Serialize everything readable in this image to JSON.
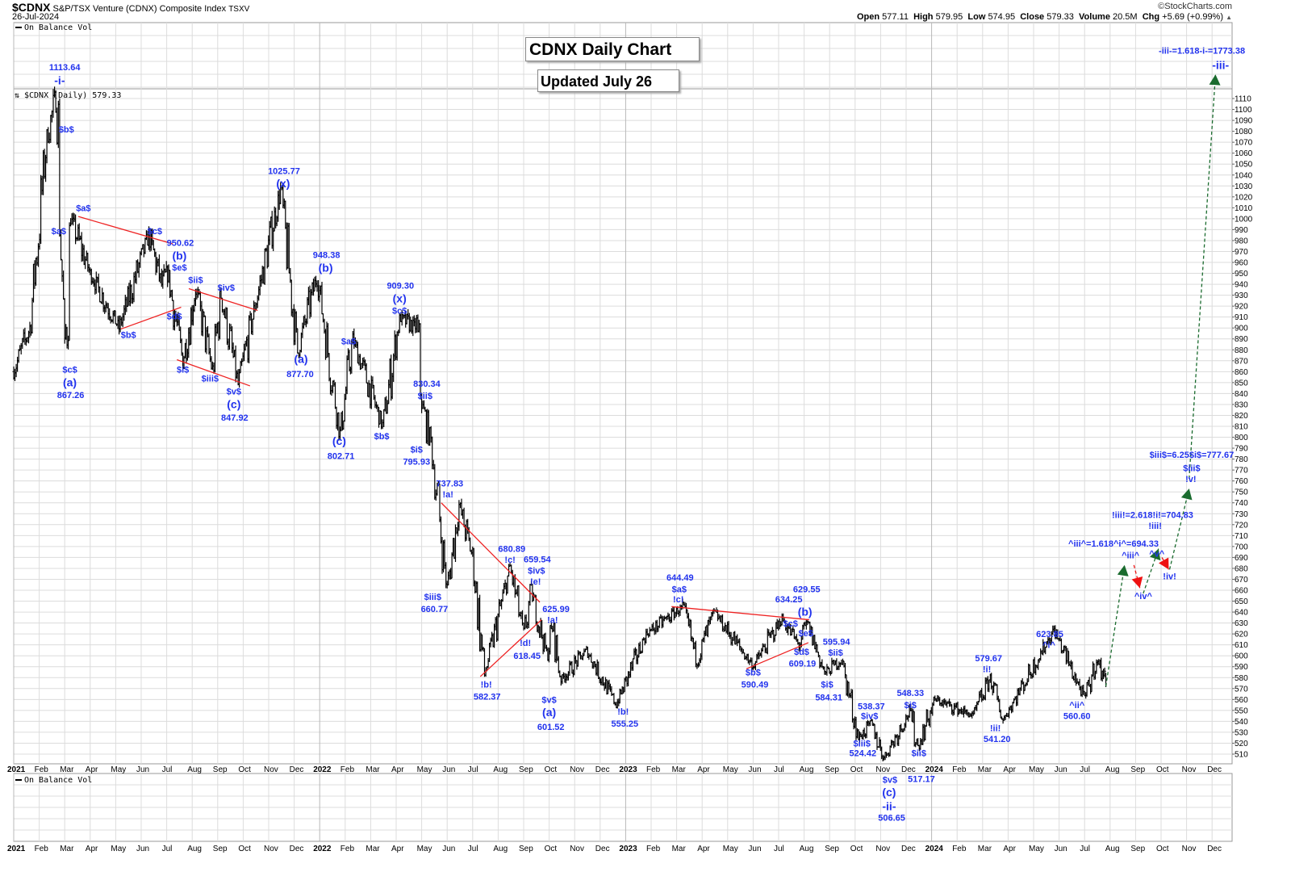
{
  "header": {
    "symbol": "$CDNX",
    "name": "S&P/TSX Venture (CDNX) Composite Index",
    "exchange": "TSXV",
    "date": "26-Jul-2024",
    "copyright": "©StockCharts.com",
    "open_label": "Open",
    "open": "577.11",
    "high_label": "High",
    "high": "579.95",
    "low_label": "Low",
    "low": "574.95",
    "close_label": "Close",
    "close": "579.33",
    "volume_label": "Volume",
    "volume": "20.5M",
    "chg_label": "Chg",
    "chg": "+5.69 (+0.99%)",
    "chg_direction": "up"
  },
  "titles": {
    "main": "CDNX Daily Chart",
    "updated": "Updated July 26"
  },
  "panels": {
    "obv_top": "On Balance Vol",
    "price": "$CDNX (Daily) 579.33",
    "obv_bottom": "On Balance Vol"
  },
  "colors": {
    "labels": "#2233ee",
    "trendlines": "#ee2222",
    "bars": "#000000",
    "projection_up": "#1a6b2e",
    "projection_down": "#ee1111",
    "grid": "#dcdcdc"
  },
  "chart_data": {
    "type": "ohlc-bar",
    "title": "CDNX Daily Chart",
    "ylim": [
      505,
      1115
    ],
    "y_scale": "linear",
    "grid": true,
    "y_ticks": [
      510,
      520,
      530,
      540,
      550,
      560,
      570,
      580,
      590,
      600,
      610,
      620,
      630,
      640,
      650,
      660,
      670,
      680,
      690,
      700,
      710,
      720,
      730,
      740,
      750,
      760,
      770,
      780,
      790,
      800,
      810,
      820,
      830,
      840,
      850,
      860,
      870,
      880,
      890,
      900,
      910,
      920,
      930,
      940,
      950,
      960,
      970,
      980,
      990,
      1000,
      1010,
      1020,
      1030,
      1040,
      1050,
      1060,
      1070,
      1080,
      1090,
      1100,
      1110
    ],
    "x_ticks": [
      "2021",
      "Feb",
      "Mar",
      "Apr",
      "May",
      "Jun",
      "Jul",
      "Aug",
      "Sep",
      "Oct",
      "Nov",
      "Dec",
      "2022",
      "Feb",
      "Mar",
      "Apr",
      "May",
      "Jun",
      "Jul",
      "Aug",
      "Sep",
      "Oct",
      "Nov",
      "Dec",
      "2023",
      "Feb",
      "Mar",
      "Apr",
      "May",
      "Jun",
      "Jul",
      "Aug",
      "Sep",
      "Oct",
      "Nov",
      "Dec",
      "2024",
      "Feb",
      "Mar",
      "Apr",
      "May",
      "Jun",
      "Jul",
      "Aug",
      "Sep",
      "Oct",
      "Nov",
      "Dec"
    ],
    "price_path": [
      [
        "2021-01-01",
        860
      ],
      [
        "2021-01-20",
        900
      ],
      [
        "2021-02-10",
        1075
      ],
      [
        "2021-02-22",
        1113.64
      ],
      [
        "2021-03-01",
        867.26
      ],
      [
        "2021-03-08",
        1000
      ],
      [
        "2021-04-01",
        950
      ],
      [
        "2021-05-05",
        900
      ],
      [
        "2021-06-10",
        985
      ],
      [
        "2021-06-25",
        940
      ],
      [
        "2021-07-02",
        950.62
      ],
      [
        "2021-07-20",
        870
      ],
      [
        "2021-08-05",
        935
      ],
      [
        "2021-08-25",
        860
      ],
      [
        "2021-09-05",
        930
      ],
      [
        "2021-09-25",
        847.92
      ],
      [
        "2021-10-15",
        920
      ],
      [
        "2021-11-15",
        1025.77
      ],
      [
        "2021-12-05",
        877.7
      ],
      [
        "2021-12-28",
        948.38
      ],
      [
        "2022-01-25",
        802.71
      ],
      [
        "2022-02-10",
        890
      ],
      [
        "2022-03-15",
        810
      ],
      [
        "2022-04-05",
        909.3
      ],
      [
        "2022-04-25",
        900
      ],
      [
        "2022-05-01",
        830.34
      ],
      [
        "2022-05-12",
        795.93
      ],
      [
        "2022-06-01",
        660.77
      ],
      [
        "2022-06-15",
        737.83
      ],
      [
        "2022-07-01",
        690
      ],
      [
        "2022-07-15",
        582.37
      ],
      [
        "2022-08-15",
        680.89
      ],
      [
        "2022-09-01",
        618.45
      ],
      [
        "2022-09-10",
        659.54
      ],
      [
        "2022-09-28",
        601.52
      ],
      [
        "2022-10-05",
        625.99
      ],
      [
        "2022-10-15",
        578
      ],
      [
        "2022-11-15",
        605
      ],
      [
        "2022-12-20",
        555.25
      ],
      [
        "2023-01-25",
        620
      ],
      [
        "2023-03-08",
        644.49
      ],
      [
        "2023-03-25",
        595
      ],
      [
        "2023-04-15",
        640
      ],
      [
        "2023-06-01",
        590.49
      ],
      [
        "2023-07-05",
        634.25
      ],
      [
        "2023-07-25",
        609.19
      ],
      [
        "2023-08-05",
        629.55
      ],
      [
        "2023-08-25",
        584.31
      ],
      [
        "2023-09-15",
        595.94
      ],
      [
        "2023-10-05",
        524.42
      ],
      [
        "2023-10-20",
        538.37
      ],
      [
        "2023-11-05",
        506.65
      ],
      [
        "2023-12-05",
        548.33
      ],
      [
        "2023-12-15",
        517.17
      ],
      [
        "2024-01-05",
        560
      ],
      [
        "2024-02-20",
        545
      ],
      [
        "2024-03-10",
        579.67
      ],
      [
        "2024-03-25",
        541.2
      ],
      [
        "2024-05-25",
        623.85
      ],
      [
        "2024-07-01",
        560.6
      ],
      [
        "2024-07-15",
        595
      ],
      [
        "2024-07-26",
        579.33
      ]
    ],
    "trendlines": [
      [
        [
          "2021-03-17",
          1002
        ],
        [
          "2021-07-08",
          977
        ]
      ],
      [
        [
          "2021-05-07",
          899
        ],
        [
          "2021-07-18",
          919
        ]
      ],
      [
        [
          "2021-07-27",
          936
        ],
        [
          "2021-10-18",
          916
        ]
      ],
      [
        [
          "2021-07-13",
          871
        ],
        [
          "2021-10-09",
          847
        ]
      ],
      [
        [
          "2022-05-24",
          740
        ],
        [
          "2022-09-20",
          649
        ]
      ],
      [
        [
          "2022-07-10",
          581
        ],
        [
          "2022-09-22",
          633
        ]
      ],
      [
        [
          "2023-02-25",
          645
        ],
        [
          "2023-08-07",
          633
        ]
      ],
      [
        [
          "2023-05-23",
          588
        ],
        [
          "2023-08-06",
          612
        ]
      ]
    ],
    "projection": [
      {
        "from": [
          "2024-07-26",
          572
        ],
        "to": [
          "2024-08-18",
          683
        ],
        "direction": "up"
      },
      {
        "from": [
          "2024-08-29",
          683
        ],
        "to": [
          "2024-09-06",
          662
        ],
        "direction": "down"
      },
      {
        "from": [
          "2024-09-10",
          657
        ],
        "to": [
          "2024-09-28",
          698
        ],
        "direction": "up"
      },
      {
        "from": [
          "2024-10-02",
          690
        ],
        "to": [
          "2024-10-10",
          679
        ],
        "direction": "down"
      },
      {
        "from": [
          "2024-10-11",
          679
        ],
        "to": [
          "2024-11-04",
          753
        ],
        "direction": "up"
      },
      {
        "from": [
          "2024-11-04",
          762
        ],
        "to": [
          "2024-12-05",
          1132
        ],
        "direction": "up"
      }
    ],
    "annotations": [
      {
        "text": "1113.64",
        "date": "2021-03-01",
        "price": 1139
      },
      {
        "text": "-i-",
        "date": "2021-02-25",
        "price": 1126,
        "big": true
      },
      {
        "text": "$b$",
        "date": "2021-03-03",
        "price": 1082
      },
      {
        "text": "$a$",
        "date": "2021-03-23",
        "price": 1010
      },
      {
        "text": "$a$",
        "date": "2021-02-24",
        "price": 989
      },
      {
        "text": "$c$",
        "date": "2021-03-07",
        "price": 862
      },
      {
        "text": "(a)",
        "date": "2021-03-07",
        "price": 851,
        "big": true
      },
      {
        "text": "867.26",
        "date": "2021-03-08",
        "price": 839
      },
      {
        "text": "$b$",
        "date": "2021-05-16",
        "price": 894
      },
      {
        "text": "$c$",
        "date": "2021-06-17",
        "price": 989
      },
      {
        "text": "950.62",
        "date": "2021-07-17",
        "price": 978
      },
      {
        "text": "(b)",
        "date": "2021-07-16",
        "price": 967,
        "big": true
      },
      {
        "text": "$e$",
        "date": "2021-07-16",
        "price": 957
      },
      {
        "text": "$d$",
        "date": "2021-07-10",
        "price": 911
      },
      {
        "text": "$ii$",
        "date": "2021-08-05",
        "price": 944
      },
      {
        "text": "$iv$",
        "date": "2021-09-11",
        "price": 937
      },
      {
        "text": "$i$",
        "date": "2021-07-20",
        "price": 862
      },
      {
        "text": "$iii$",
        "date": "2021-08-22",
        "price": 854
      },
      {
        "text": "$v$",
        "date": "2021-09-20",
        "price": 842
      },
      {
        "text": "(c)",
        "date": "2021-09-20",
        "price": 831,
        "big": true
      },
      {
        "text": "847.92",
        "date": "2021-09-21",
        "price": 818
      },
      {
        "text": "1025.77",
        "date": "2021-11-19",
        "price": 1044
      },
      {
        "text": "(x)",
        "date": "2021-11-18",
        "price": 1033,
        "big": true
      },
      {
        "text": "(a)",
        "date": "2021-12-09",
        "price": 871,
        "big": true
      },
      {
        "text": "877.70",
        "date": "2021-12-08",
        "price": 858
      },
      {
        "text": "948.38",
        "date": "2022-01-09",
        "price": 967
      },
      {
        "text": "(b)",
        "date": "2022-01-08",
        "price": 956,
        "big": true
      },
      {
        "text": "$a$",
        "date": "2022-02-05",
        "price": 888
      },
      {
        "text": "(c)",
        "date": "2022-01-24",
        "price": 796,
        "big": true
      },
      {
        "text": "802.71",
        "date": "2022-01-26",
        "price": 783
      },
      {
        "text": "$b$",
        "date": "2022-03-14",
        "price": 801
      },
      {
        "text": "909.30",
        "date": "2022-04-06",
        "price": 939
      },
      {
        "text": "(x)",
        "date": "2022-04-05",
        "price": 928,
        "big": true
      },
      {
        "text": "$c$",
        "date": "2022-04-05",
        "price": 916
      },
      {
        "text": "830.34",
        "date": "2022-05-07",
        "price": 849
      },
      {
        "text": "$ii$",
        "date": "2022-05-05",
        "price": 838
      },
      {
        "text": "$i$",
        "date": "2022-04-25",
        "price": 789
      },
      {
        "text": "795.93",
        "date": "2022-04-25",
        "price": 778
      },
      {
        "text": "737.83",
        "date": "2022-06-04",
        "price": 758
      },
      {
        "text": "!a!",
        "date": "2022-06-02",
        "price": 748
      },
      {
        "text": "$iii$",
        "date": "2022-05-14",
        "price": 654
      },
      {
        "text": "660.77",
        "date": "2022-05-16",
        "price": 643
      },
      {
        "text": "680.89",
        "date": "2022-08-17",
        "price": 698
      },
      {
        "text": "!c!",
        "date": "2022-08-15",
        "price": 688
      },
      {
        "text": "659.54",
        "date": "2022-09-17",
        "price": 690
      },
      {
        "text": "$iv$",
        "date": "2022-09-16",
        "price": 678
      },
      {
        "text": "!e!",
        "date": "2022-09-15",
        "price": 668
      },
      {
        "text": "625.99",
        "date": "2022-10-09",
        "price": 643
      },
      {
        "text": "!a!",
        "date": "2022-10-05",
        "price": 633
      },
      {
        "text": "!d!",
        "date": "2022-09-03",
        "price": 612
      },
      {
        "text": "618.45",
        "date": "2022-09-05",
        "price": 600
      },
      {
        "text": "!b!",
        "date": "2022-07-17",
        "price": 574
      },
      {
        "text": "582.37",
        "date": "2022-07-18",
        "price": 563
      },
      {
        "text": "$v$",
        "date": "2022-10-01",
        "price": 560
      },
      {
        "text": "(a)",
        "date": "2022-10-01",
        "price": 549,
        "big": true
      },
      {
        "text": "601.52",
        "date": "2022-10-03",
        "price": 535
      },
      {
        "text": "!b!",
        "date": "2022-12-28",
        "price": 549
      },
      {
        "text": "555.25",
        "date": "2022-12-30",
        "price": 538
      },
      {
        "text": "644.49",
        "date": "2023-03-05",
        "price": 672
      },
      {
        "text": "$a$",
        "date": "2023-03-04",
        "price": 661
      },
      {
        "text": "!c!",
        "date": "2023-03-03",
        "price": 652
      },
      {
        "text": "$b$",
        "date": "2023-06-01",
        "price": 585
      },
      {
        "text": "590.49",
        "date": "2023-06-03",
        "price": 574
      },
      {
        "text": "634.25",
        "date": "2023-07-13",
        "price": 652
      },
      {
        "text": "629.55",
        "date": "2023-08-04",
        "price": 661
      },
      {
        "text": "(b)",
        "date": "2023-08-02",
        "price": 650,
        "big": true
      },
      {
        "text": "$c$",
        "date": "2023-07-15",
        "price": 640
      },
      {
        "text": "$e$",
        "date": "2023-08-03",
        "price": 640
      },
      {
        "text": "$d$",
        "date": "2023-07-28",
        "price": 604
      },
      {
        "text": "609.19",
        "date": "2023-07-29",
        "price": 593
      },
      {
        "text": "595.94",
        "date": "2023-09-09",
        "price": 613
      },
      {
        "text": "$ii$",
        "date": "2023-09-08",
        "price": 603
      },
      {
        "text": "$i$",
        "date": "2023-08-28",
        "price": 574
      },
      {
        "text": "584.31",
        "date": "2023-08-30",
        "price": 562
      },
      {
        "text": "538.37",
        "date": "2023-10-20",
        "price": 554
      },
      {
        "text": "$iv$",
        "date": "2023-10-18",
        "price": 545
      },
      {
        "text": "$iii$",
        "date": "2023-10-09",
        "price": 520
      },
      {
        "text": "524.42",
        "date": "2023-10-10",
        "price": 511
      },
      {
        "text": "548.33",
        "date": "2023-12-06",
        "price": 566
      },
      {
        "text": "$i$",
        "date": "2023-12-06",
        "price": 555
      },
      {
        "text": "$ii$",
        "date": "2023-12-16",
        "price": 511
      },
      {
        "text": "517.17",
        "date": "2023-12-19",
        "price": 489
      },
      {
        "text": "$v$",
        "date": "2023-11-12",
        "price": 494
      },
      {
        "text": "(c)",
        "date": "2023-11-11",
        "price": 485,
        "big": true
      },
      {
        "text": "-ii-",
        "date": "2023-11-11",
        "price": 472,
        "big": true
      },
      {
        "text": "506.65",
        "date": "2023-11-14",
        "price": 461
      },
      {
        "text": "579.67",
        "date": "2024-03-08",
        "price": 598
      },
      {
        "text": "!i!",
        "date": "2024-03-06",
        "price": 588
      },
      {
        "text": "!ii!",
        "date": "2024-03-16",
        "price": 534
      },
      {
        "text": "541.20",
        "date": "2024-03-18",
        "price": 524
      },
      {
        "text": "623.85",
        "date": "2024-05-20",
        "price": 620
      },
      {
        "text": "^i^",
        "date": "2024-05-19",
        "price": 610
      },
      {
        "text": "^ii^",
        "date": "2024-06-22",
        "price": 555
      },
      {
        "text": "560.60",
        "date": "2024-06-22",
        "price": 545
      },
      {
        "text": "^iii^=1.618^i^=694.33",
        "date": "2024-08-05",
        "price": 703
      },
      {
        "text": "^iii^",
        "date": "2024-08-25",
        "price": 692
      },
      {
        "text": "^iv^",
        "date": "2024-09-10",
        "price": 655
      },
      {
        "text": "!iii!=2.618!i!=704.83",
        "date": "2024-09-21",
        "price": 729
      },
      {
        "text": "!iii!",
        "date": "2024-09-24",
        "price": 719
      },
      {
        "text": "^v^",
        "date": "2024-09-26",
        "price": 710
      },
      {
        "text": "!iv!",
        "date": "2024-10-11",
        "price": 673
      },
      {
        "text": "$iii$=6.25$i$=777.67",
        "date": "2024-11-07",
        "price": 784
      },
      {
        "text": "$iii$",
        "date": "2024-11-07",
        "price": 772
      },
      {
        "text": "!v!",
        "date": "2024-11-06",
        "price": 762
      },
      {
        "text": "-iii-=1.618-i-=1773.38",
        "date": "2024-11-19",
        "price": 1154
      },
      {
        "text": "-iii-",
        "date": "2024-12-11",
        "price": 1140,
        "big": true
      }
    ]
  }
}
